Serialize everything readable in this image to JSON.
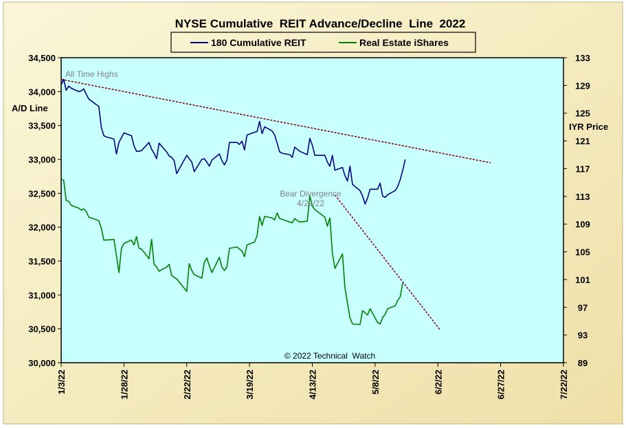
{
  "chart_data": {
    "type": "line",
    "title": "NYSE Cumulative  REIT Advance/Decline  Line  2022",
    "ylabel_left": "A/D Line",
    "ylabel_right": "IYR Price",
    "ylim_left": [
      30000,
      34500
    ],
    "ylim_right": [
      89,
      133
    ],
    "yticks_left": [
      "30,000",
      "30,500",
      "31,000",
      "31,500",
      "32,000",
      "32,500",
      "33,000",
      "33,500",
      "34,000",
      "34,500"
    ],
    "yticks_left_values": [
      30000,
      30500,
      31000,
      31500,
      32000,
      32500,
      33000,
      33500,
      34000,
      34500
    ],
    "yticks_right": [
      "89",
      "93",
      "97",
      "101",
      "105",
      "109",
      "113",
      "117",
      "121",
      "125",
      "129",
      "133"
    ],
    "yticks_right_values": [
      89,
      93,
      97,
      101,
      105,
      109,
      113,
      117,
      121,
      125,
      129,
      133
    ],
    "xlim": [
      "2022-01-03",
      "2022-07-22"
    ],
    "xticks": [
      "1/3/22",
      "1/28/22",
      "2/22/22",
      "3/19/22",
      "4/13/22",
      "5/8/22",
      "6/2/22",
      "6/27/22",
      "7/22/22"
    ],
    "xticks_dates": [
      "2022-01-03",
      "2022-01-28",
      "2022-02-22",
      "2022-03-19",
      "2022-04-13",
      "2022-05-08",
      "2022-06-02",
      "2022-06-27",
      "2022-07-22"
    ],
    "legend_position": "top",
    "grid": false,
    "series": [
      {
        "name": "180 Cumulative REIT",
        "axis": "left",
        "color": "#000080",
        "x": [
          "2022-01-03",
          "2022-01-04",
          "2022-01-05",
          "2022-01-06",
          "2022-01-07",
          "2022-01-10",
          "2022-01-11",
          "2022-01-12",
          "2022-01-13",
          "2022-01-14",
          "2022-01-18",
          "2022-01-19",
          "2022-01-20",
          "2022-01-21",
          "2022-01-24",
          "2022-01-25",
          "2022-01-26",
          "2022-01-27",
          "2022-01-28",
          "2022-01-31",
          "2022-02-01",
          "2022-02-02",
          "2022-02-03",
          "2022-02-04",
          "2022-02-07",
          "2022-02-08",
          "2022-02-09",
          "2022-02-10",
          "2022-02-11",
          "2022-02-14",
          "2022-02-15",
          "2022-02-16",
          "2022-02-17",
          "2022-02-18",
          "2022-02-22",
          "2022-02-23",
          "2022-02-24",
          "2022-02-25",
          "2022-02-28",
          "2022-03-01",
          "2022-03-02",
          "2022-03-03",
          "2022-03-04",
          "2022-03-07",
          "2022-03-08",
          "2022-03-09",
          "2022-03-10",
          "2022-03-11",
          "2022-03-14",
          "2022-03-15",
          "2022-03-16",
          "2022-03-17",
          "2022-03-18",
          "2022-03-21",
          "2022-03-22",
          "2022-03-23",
          "2022-03-24",
          "2022-03-25",
          "2022-03-28",
          "2022-03-29",
          "2022-03-30",
          "2022-03-31",
          "2022-04-01",
          "2022-04-04",
          "2022-04-05",
          "2022-04-06",
          "2022-04-07",
          "2022-04-08",
          "2022-04-11",
          "2022-04-12",
          "2022-04-13",
          "2022-04-14",
          "2022-04-18",
          "2022-04-19",
          "2022-04-20",
          "2022-04-21",
          "2022-04-22",
          "2022-04-25",
          "2022-04-26",
          "2022-04-27",
          "2022-04-28",
          "2022-04-29",
          "2022-05-02",
          "2022-05-03",
          "2022-05-04",
          "2022-05-05",
          "2022-05-06",
          "2022-05-09",
          "2022-05-10",
          "2022-05-11",
          "2022-05-12",
          "2022-05-13",
          "2022-05-16",
          "2022-05-17",
          "2022-05-18",
          "2022-05-19",
          "2022-05-20",
          "2022-05-23",
          "2022-05-24",
          "2022-05-25",
          "2022-05-26",
          "2022-05-27"
        ],
        "values": [
          34100,
          34180,
          34020,
          34080,
          34050,
          34000,
          34010,
          34040,
          33960,
          33890,
          33780,
          33470,
          33350,
          33330,
          33300,
          33080,
          33250,
          33320,
          33390,
          33350,
          33200,
          33120,
          33120,
          33130,
          33250,
          33150,
          33090,
          33010,
          33240,
          33110,
          33050,
          33030,
          32980,
          32790,
          33060,
          33010,
          32960,
          32820,
          33000,
          33010,
          32960,
          32900,
          32990,
          33080,
          32980,
          32920,
          32990,
          33250,
          33250,
          33220,
          33270,
          33140,
          33360,
          33400,
          33410,
          33560,
          33380,
          33480,
          33420,
          33360,
          33240,
          33110,
          33090,
          33070,
          33030,
          33180,
          33150,
          33120,
          33070,
          33310,
          33210,
          33060,
          33060,
          32960,
          32900,
          33060,
          32840,
          32880,
          32760,
          32680,
          32900,
          32630,
          32540,
          32460,
          32340,
          32430,
          32560,
          32560,
          32650,
          32460,
          32440,
          32480,
          32540,
          32600,
          32700,
          32840,
          33000,
          null,
          null,
          null,
          null,
          null
        ]
      },
      {
        "name": "Real Estate iShares",
        "axis": "right",
        "color": "#008000",
        "x": [
          "2022-01-03",
          "2022-01-04",
          "2022-01-05",
          "2022-01-06",
          "2022-01-07",
          "2022-01-10",
          "2022-01-11",
          "2022-01-12",
          "2022-01-13",
          "2022-01-14",
          "2022-01-18",
          "2022-01-19",
          "2022-01-20",
          "2022-01-21",
          "2022-01-24",
          "2022-01-25",
          "2022-01-26",
          "2022-01-27",
          "2022-01-28",
          "2022-01-31",
          "2022-02-01",
          "2022-02-02",
          "2022-02-03",
          "2022-02-04",
          "2022-02-07",
          "2022-02-08",
          "2022-02-09",
          "2022-02-10",
          "2022-02-11",
          "2022-02-14",
          "2022-02-15",
          "2022-02-16",
          "2022-02-17",
          "2022-02-18",
          "2022-02-22",
          "2022-02-23",
          "2022-02-24",
          "2022-02-25",
          "2022-02-28",
          "2022-03-01",
          "2022-03-02",
          "2022-03-03",
          "2022-03-04",
          "2022-03-07",
          "2022-03-08",
          "2022-03-09",
          "2022-03-10",
          "2022-03-11",
          "2022-03-14",
          "2022-03-15",
          "2022-03-16",
          "2022-03-17",
          "2022-03-18",
          "2022-03-21",
          "2022-03-22",
          "2022-03-23",
          "2022-03-24",
          "2022-03-25",
          "2022-03-28",
          "2022-03-29",
          "2022-03-30",
          "2022-03-31",
          "2022-04-01",
          "2022-04-04",
          "2022-04-05",
          "2022-04-06",
          "2022-04-07",
          "2022-04-08",
          "2022-04-11",
          "2022-04-12",
          "2022-04-13",
          "2022-04-14",
          "2022-04-18",
          "2022-04-19",
          "2022-04-20",
          "2022-04-21",
          "2022-04-22",
          "2022-04-25",
          "2022-04-26",
          "2022-04-27",
          "2022-04-28",
          "2022-04-29",
          "2022-05-02",
          "2022-05-03",
          "2022-05-04",
          "2022-05-05",
          "2022-05-06",
          "2022-05-09",
          "2022-05-10",
          "2022-05-11",
          "2022-05-12",
          "2022-05-13",
          "2022-05-16",
          "2022-05-17",
          "2022-05-18",
          "2022-05-19",
          "2022-05-20",
          "2022-05-23",
          "2022-05-24",
          "2022-05-25",
          "2022-05-26",
          "2022-05-27"
        ],
        "values": [
          115.5,
          115.3,
          112.4,
          112.3,
          111.7,
          111.3,
          111.0,
          111.2,
          110.8,
          110.0,
          109.5,
          108.4,
          106.7,
          106.7,
          106.8,
          104.5,
          102.0,
          105.5,
          106.2,
          106.7,
          106.0,
          107.2,
          105.5,
          105.4,
          104.0,
          106.8,
          103.2,
          102.8,
          102.2,
          102.8,
          103.2,
          101.6,
          101.3,
          101.1,
          99.3,
          103.3,
          102.3,
          101.7,
          101.2,
          103.5,
          104.1,
          103.0,
          102.0,
          104.2,
          102.8,
          102.3,
          102.8,
          105.5,
          105.7,
          105.4,
          105.1,
          104.3,
          106.0,
          106.4,
          107.3,
          110.1,
          108.8,
          110.1,
          109.9,
          109.6,
          110.6,
          109.8,
          109.7,
          109.3,
          109.2,
          109.8,
          109.5,
          109.3,
          109.4,
          113.1,
          111.6,
          111.1,
          110.0,
          108.7,
          109.9,
          104.8,
          102.6,
          104.7,
          99.8,
          97.6,
          95.5,
          94.6,
          94.5,
          96.5,
          96.2,
          95.9,
          96.8,
          94.8,
          94.6,
          95.5,
          96.0,
          96.8,
          97.2,
          98.0,
          98.5,
          100.5,
          null,
          null,
          null,
          null,
          null,
          null
        ]
      }
    ],
    "annotations": [
      {
        "text": "All Time Highs",
        "kind": "trendline",
        "axis": "left",
        "color": "#800000",
        "from": {
          "x": "2022-01-03",
          "y": 34180
        },
        "to": {
          "x": "2022-06-23",
          "y": 32950
        }
      },
      {
        "text_lines": [
          "Bear Divergence",
          "4/22/22"
        ],
        "kind": "trendline",
        "axis": "right",
        "color": "#800040",
        "from": {
          "x": "2022-04-22",
          "y": 113.2
        },
        "to": {
          "x": "2022-06-03",
          "y": 93.7
        }
      }
    ],
    "copyright": "© 2022 Technical  Watch"
  },
  "colors": {
    "page_background": "#f8f0c4",
    "plot_background": "#c8ffff",
    "reit_line": "#000080",
    "iyr_line": "#008000",
    "trendline": "#800000",
    "annotation_text": "#808080"
  }
}
